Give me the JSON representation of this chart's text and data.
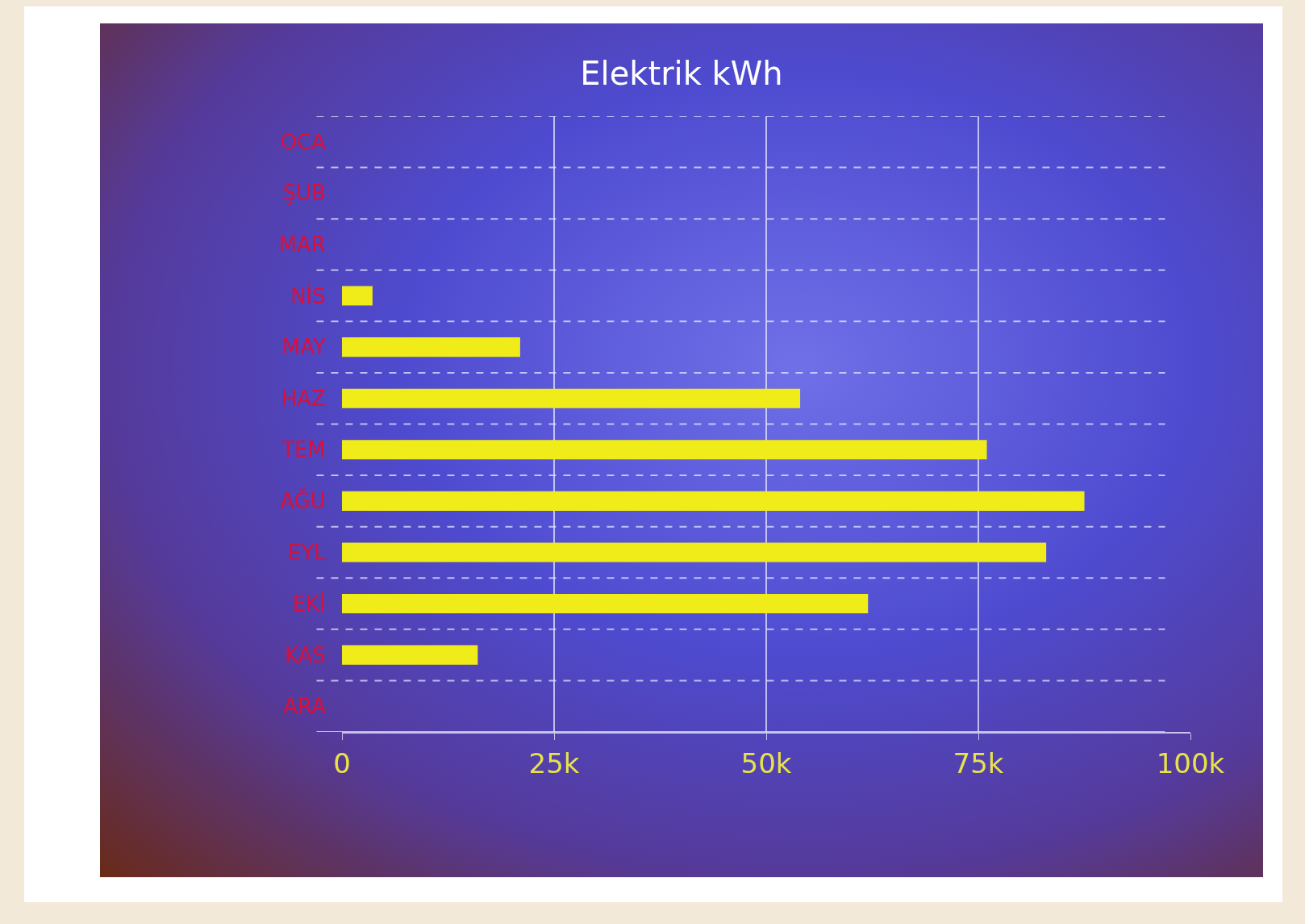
{
  "chart_data": {
    "type": "bar",
    "orientation": "horizontal",
    "title": "Elektrik kWh",
    "categories": [
      "OCA",
      "ŞUB",
      "MAR",
      "NİS",
      "MAY",
      "HAZ",
      "TEM",
      "AĞU",
      "EYL",
      "EKİ",
      "KAS",
      "ARA"
    ],
    "values": [
      0,
      0,
      0,
      3.6,
      21,
      54,
      76,
      87.5,
      83,
      62,
      16,
      0
    ],
    "color": "#f0ec1a",
    "xlim": [
      0,
      100
    ],
    "xticks": [
      {
        "value": 0,
        "label": "0"
      },
      {
        "value": 25,
        "label": "25k"
      },
      {
        "value": 50,
        "label": "50k"
      },
      {
        "value": 75,
        "label": "75k"
      },
      {
        "value": 100,
        "label": "100k"
      }
    ],
    "grid": true
  }
}
